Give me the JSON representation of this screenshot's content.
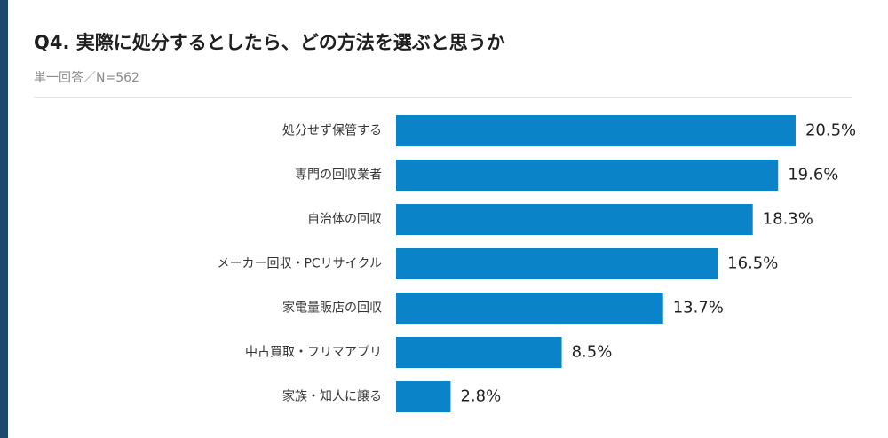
{
  "header": {
    "title": "Q4. 実際に処分するとしたら、どの方法を選ぶと思うか",
    "subtitle": "単一回答／N=562"
  },
  "colors": {
    "bar": "#0a83c8",
    "accent": "#1b4a6e"
  },
  "chart_data": {
    "type": "bar",
    "orientation": "horizontal",
    "categories": [
      "処分せず保管する",
      "専門の回収業者",
      "自治体の回収",
      "メーカー回収・PCリサイクル",
      "家電量販店の回収",
      "中古買取・フリマアプリ",
      "家族・知人に譲る"
    ],
    "values": [
      20.5,
      19.6,
      18.3,
      16.5,
      13.7,
      8.5,
      2.8
    ],
    "value_labels": [
      "20.5%",
      "19.6%",
      "18.3%",
      "16.5%",
      "13.7%",
      "8.5%",
      "2.8%"
    ],
    "unit": "%",
    "grid": false,
    "legend": "none"
  }
}
